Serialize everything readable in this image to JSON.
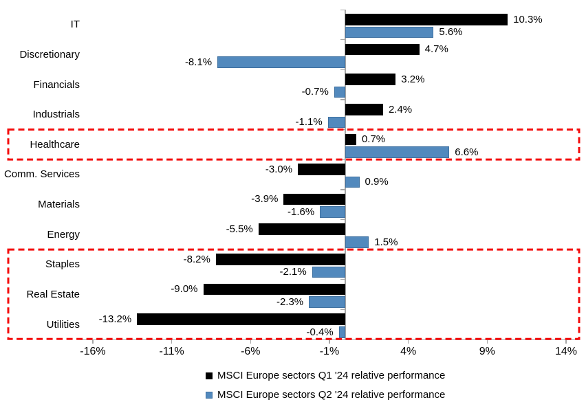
{
  "chart_data": {
    "type": "bar",
    "orientation": "horizontal",
    "title": "",
    "categories": [
      "IT",
      "Discretionary",
      "Financials",
      "Industrials",
      "Healthcare",
      "Comm. Services",
      "Materials",
      "Energy",
      "Staples",
      "Real Estate",
      "Utilities"
    ],
    "series": [
      {
        "name": "MSCI Europe sectors Q1 '24 relative performance",
        "color": "#000000",
        "values": [
          10.3,
          4.7,
          3.2,
          2.4,
          0.7,
          -3.0,
          -3.9,
          -5.5,
          -8.2,
          -9.0,
          -13.2
        ],
        "labels": [
          "10.3%",
          "4.7%",
          "3.2%",
          "2.4%",
          "0.7%",
          "-3.0%",
          "-3.9%",
          "-5.5%",
          "-8.2%",
          "-9.0%",
          "-13.2%"
        ]
      },
      {
        "name": "MSCI Europe sectors Q2 '24 relative performance",
        "color": "#5289BD",
        "border_color": "#3E70A0",
        "values": [
          5.6,
          -8.1,
          -0.7,
          -1.1,
          6.6,
          0.9,
          -1.6,
          1.5,
          -2.1,
          -2.3,
          -0.4
        ],
        "labels": [
          "5.6%",
          "-8.1%",
          "-0.7%",
          "-1.1%",
          "6.6%",
          "0.9%",
          "-1.6%",
          "1.5%",
          "-2.1%",
          "-2.3%",
          "-0.4%"
        ]
      }
    ],
    "xlim": [
      -16,
      14
    ],
    "x_ticks": [
      {
        "value": -16,
        "label": "-16%"
      },
      {
        "value": -11,
        "label": "-11%"
      },
      {
        "value": -6,
        "label": "-6%"
      },
      {
        "value": -1,
        "label": "-1%"
      },
      {
        "value": 4,
        "label": "4%"
      },
      {
        "value": 9,
        "label": "9%"
      },
      {
        "value": 14,
        "label": "14%"
      }
    ],
    "grid": false,
    "axis_color": "#A6A6A6",
    "legend_position": "bottom-center",
    "highlight_boxes": [
      {
        "name": "healthcare",
        "categories": [
          "Healthcare"
        ],
        "first_index": 4,
        "last_index": 4,
        "color": "#F40B0B",
        "style": "dashed"
      },
      {
        "name": "defensives",
        "categories": [
          "Staples",
          "Real Estate",
          "Utilities"
        ],
        "first_index": 8,
        "last_index": 10,
        "color": "#F40B0B",
        "style": "dashed"
      }
    ]
  },
  "legend": {
    "items": [
      {
        "label": "MSCI Europe sectors Q1 '24 relative performance",
        "color": "#000000"
      },
      {
        "label": "MSCI Europe sectors Q2 '24 relative performance",
        "color": "#5289BD"
      }
    ]
  }
}
